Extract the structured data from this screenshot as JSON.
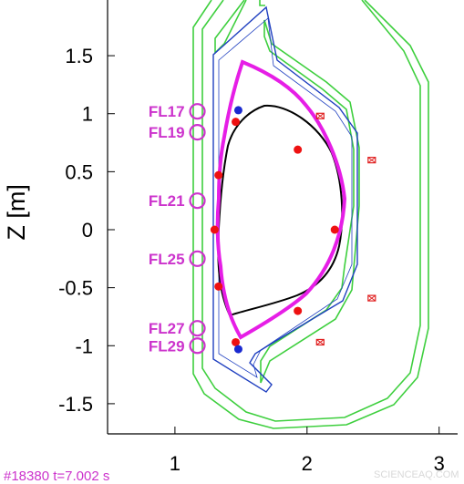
{
  "chart_data": {
    "type": "diagram",
    "ylabel": "Z [m]",
    "x_ticks": [
      1,
      2,
      3
    ],
    "y_ticks": [
      1.5,
      1,
      0.5,
      0,
      -0.5,
      -1,
      -1.5
    ],
    "y_tick_labels": [
      "1.5",
      "1",
      "0.5",
      "0",
      "-0.5",
      "-1",
      "-1.5"
    ],
    "xlim": [
      0.49,
      3.14
    ],
    "ylim": [
      -1.76,
      1.98
    ],
    "flux_loops": [
      {
        "name": "FL17",
        "R": 1.17,
        "Z": 1.02
      },
      {
        "name": "FL19",
        "R": 1.17,
        "Z": 0.84
      },
      {
        "name": "FL21",
        "R": 1.17,
        "Z": 0.25
      },
      {
        "name": "FL25",
        "R": 1.17,
        "Z": -0.25
      },
      {
        "name": "FL27",
        "R": 1.17,
        "Z": -0.85
      },
      {
        "name": "FL29",
        "R": 1.17,
        "Z": -1.0
      }
    ],
    "red_points": [
      {
        "R": 1.46,
        "Z": 0.93
      },
      {
        "R": 1.93,
        "Z": 0.69
      },
      {
        "R": 1.33,
        "Z": 0.47
      },
      {
        "R": 1.3,
        "Z": 0.0
      },
      {
        "R": 2.21,
        "Z": 0.0
      },
      {
        "R": 1.33,
        "Z": -0.49
      },
      {
        "R": 1.93,
        "Z": -0.7
      },
      {
        "R": 1.46,
        "Z": -0.97
      }
    ],
    "blue_points": [
      {
        "R": 1.48,
        "Z": 1.03
      },
      {
        "R": 1.48,
        "Z": -1.03
      }
    ],
    "sensor_markers": [
      {
        "R": 2.1,
        "Z": 0.98
      },
      {
        "R": 2.49,
        "Z": 0.6
      },
      {
        "R": 2.49,
        "Z": -0.59
      },
      {
        "R": 2.1,
        "Z": -0.97
      }
    ],
    "colors": {
      "coil_outline": "#3ecf3e",
      "vessel": "#2040c0",
      "boundary": "#e61ee6",
      "separatrix": "#000000",
      "points": "#ee1111",
      "xpoints": "#1a2ad0",
      "probe": "#cc33cc",
      "marker": "#e02020"
    }
  },
  "footer": {
    "shot": "#18380 t=7.002 s",
    "watermark": "SCIENCEAQ.COM"
  }
}
